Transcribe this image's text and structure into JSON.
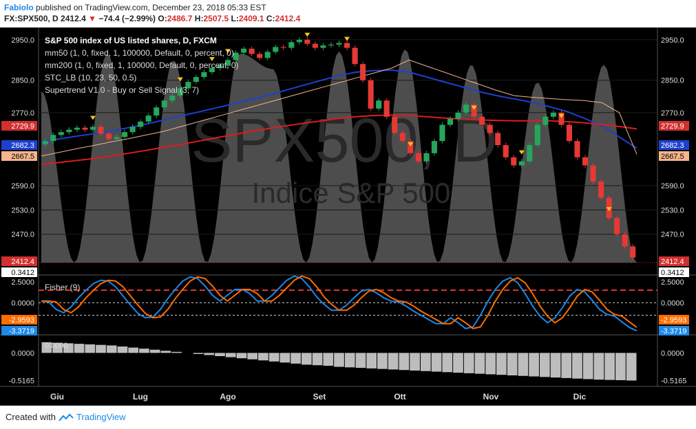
{
  "header": {
    "author": "Fabiolo",
    "published": "published on TradingView.com, December 23, 2018 05:33 EST",
    "symbol": "FX:SPX500, D",
    "last": "2412.4",
    "change": "−74.4 (−2.99%)",
    "o_label": "O:",
    "o_val": "2486.7",
    "h_label": "H:",
    "h_val": "2507.5",
    "l_label": "L:",
    "l_val": "2409.1",
    "c_label": "C:",
    "c_val": "2412.4"
  },
  "legend": {
    "l1": "S&P 500 index of US listed shares, D, FXCM",
    "l2": "mm50 (1, 0, fixed, 1, 100000, Default, 0, percent, 0)",
    "l3": "mm200 (1, 0, fixed, 1, 100000, Default, 0, percent, 0)",
    "l4": "STC_LB (10, 23, 50, 0.5)",
    "l5": "Supertrend V1.0 - Buy or Sell Signal (3, 7)"
  },
  "watermark": {
    "big": "SPX500, D",
    "small": "Indice S&P 500"
  },
  "footer": {
    "created": "Created with",
    "brand": "TradingView"
  },
  "chart_data": {
    "type": "candlestick",
    "symbol": "FX:SPX500, D",
    "months": [
      "Giu",
      "Lug",
      "Ago",
      "Set",
      "Ott",
      "Nov",
      "Dic"
    ],
    "price_axis": {
      "ticks": [
        "2950.0",
        "2850.0",
        "2770.0",
        "2590.0",
        "2530.0",
        "2470.0"
      ],
      "ylim": [
        2400,
        2970
      ],
      "markers": [
        {
          "label": "2729.9",
          "color": "#d32f2f",
          "text_color": "#ffffff"
        },
        {
          "label": "2682.3",
          "color": "#1e40d0",
          "text_color": "#ffffff"
        },
        {
          "label": "2667.5",
          "color": "#f5b48c",
          "text_color": "#000000"
        },
        {
          "label": "2412.4",
          "color": "#d32f2f",
          "text_color": "#ffffff"
        },
        {
          "label": "0.3412",
          "color": "#ffffff",
          "text_color": "#000000"
        }
      ]
    },
    "price_series": [
      {
        "name": "mm50",
        "color": "#1e40d0",
        "values": [
          2700,
          2705,
          2712,
          2718,
          2725,
          2733,
          2742,
          2752,
          2762,
          2772,
          2782,
          2792,
          2803,
          2814,
          2826,
          2838,
          2850,
          2862,
          2870,
          2874,
          2875,
          2870,
          2858,
          2846,
          2834,
          2822,
          2812,
          2804,
          2796,
          2785,
          2773,
          2756,
          2738,
          2710,
          2682.3
        ]
      },
      {
        "name": "mm200",
        "color": "#e01b1b",
        "values": [
          2642,
          2647,
          2652,
          2657,
          2663,
          2670,
          2677,
          2685,
          2692,
          2700,
          2708,
          2716,
          2724,
          2731,
          2738,
          2744,
          2750,
          2756,
          2760,
          2763,
          2764,
          2763,
          2760,
          2757,
          2754,
          2752,
          2751,
          2750,
          2750,
          2750,
          2748,
          2745,
          2741,
          2736,
          2729.9
        ]
      },
      {
        "name": "Supertrend",
        "color": "#f5b48c",
        "values": [
          2663,
          2672,
          2681,
          2689,
          2698,
          2706,
          2715,
          2724,
          2736,
          2748,
          2760,
          2772,
          2784,
          2796,
          2808,
          2820,
          2832,
          2844,
          2856,
          2868,
          2880,
          2900,
          2885,
          2870,
          2855,
          2840,
          2825,
          2812,
          2808,
          2805,
          2802,
          2800,
          2795,
          2770,
          2667.5
        ]
      }
    ],
    "candles_close": [
      2700,
      2715,
      2722,
      2728,
      2733,
      2728,
      2735,
      2718,
      2705,
      2710,
      2722,
      2735,
      2748,
      2763,
      2783,
      2800,
      2812,
      2830,
      2846,
      2858,
      2870,
      2880,
      2886,
      2900,
      2918,
      2928,
      2915,
      2905,
      2920,
      2932,
      2930,
      2944,
      2950,
      2940,
      2930,
      2936,
      2938,
      2942,
      2930,
      2890,
      2850,
      2780,
      2800,
      2760,
      2720,
      2700,
      2670,
      2650,
      2670,
      2700,
      2740,
      2755,
      2770,
      2790,
      2760,
      2740,
      2720,
      2690,
      2660,
      2640,
      2650,
      2690,
      2740,
      2760,
      2770,
      2740,
      2700,
      2660,
      2640,
      2600,
      2560,
      2510,
      2470,
      2440,
      2412.4
    ],
    "stc_cycle_fractions": [
      0.78,
      0.0,
      0.95,
      0.0,
      0.92,
      0.0,
      0.95,
      0.88,
      0.0,
      0.96,
      0.0,
      0.97,
      0.0,
      0.9,
      0.0,
      0.82,
      0.0,
      0.9,
      0.0
    ],
    "fisher": {
      "name": "Fisher (9)",
      "ylim": [
        -3.6,
        3.0
      ],
      "ticks": [
        "2.5000",
        "0.0000"
      ],
      "markers": [
        {
          "label": "-2.9593",
          "color": "#ff6d00",
          "text_color": "#ffffff"
        },
        {
          "label": "-3.3719",
          "color": "#1e88e5",
          "text_color": "#ffffff"
        }
      ],
      "levels": [
        1.5,
        -1.5,
        0
      ],
      "fisher_values": [
        0.2,
        0.1,
        -0.8,
        -1.2,
        -0.5,
        0.6,
        1.5,
        2.3,
        2.7,
        2.6,
        1.9,
        0.8,
        -0.3,
        -1.3,
        -1.8,
        -1.7,
        -0.8,
        0.5,
        1.6,
        2.6,
        3.1,
        2.9,
        2.0,
        0.9,
        0.2,
        0.9,
        1.6,
        1.6,
        1.1,
        0.2,
        0.2,
        0.9,
        1.8,
        2.7,
        3.2,
        2.9,
        1.9,
        0.7,
        -0.2,
        -0.9,
        -0.9,
        -0.3,
        0.6,
        1.4,
        1.6,
        1.2,
        0.6,
        0.2,
        0.1,
        -0.4,
        -1.0,
        -1.5,
        -2.0,
        -2.5,
        -2.5,
        -1.8,
        -2.4,
        -3.1,
        -2.9,
        -1.5,
        0.2,
        1.6,
        2.6,
        3.0,
        2.4,
        1.1,
        -0.4,
        -1.6,
        -2.4,
        -1.8,
        -0.6,
        0.8,
        1.6,
        1.3,
        0.3,
        -0.8,
        -1.4,
        -1.6,
        -2.3,
        -2.9593,
        -3.3719
      ]
    },
    "oscillator": {
      "label": "0.0000",
      "ylim": [
        -0.6,
        0.3
      ],
      "ticks": [
        "0.0000",
        "-0.5165"
      ],
      "last_label": "-0.5165",
      "values": [
        0.2,
        0.19,
        0.18,
        0.17,
        0.16,
        0.15,
        0.14,
        0.12,
        0.1,
        0.08,
        0.06,
        0.04,
        0.02,
        0.0,
        -0.02,
        -0.04,
        -0.06,
        -0.08,
        -0.1,
        -0.12,
        -0.14,
        -0.16,
        -0.18,
        -0.2,
        -0.22,
        -0.23,
        -0.24,
        -0.26,
        -0.27,
        -0.28,
        -0.29,
        -0.3,
        -0.31,
        -0.32,
        -0.33,
        -0.34,
        -0.35,
        -0.36,
        -0.37,
        -0.38,
        -0.39,
        -0.4,
        -0.41,
        -0.42,
        -0.43,
        -0.44,
        -0.45,
        -0.46,
        -0.47,
        -0.48,
        -0.49,
        -0.5,
        -0.505,
        -0.51,
        -0.5165
      ]
    }
  }
}
